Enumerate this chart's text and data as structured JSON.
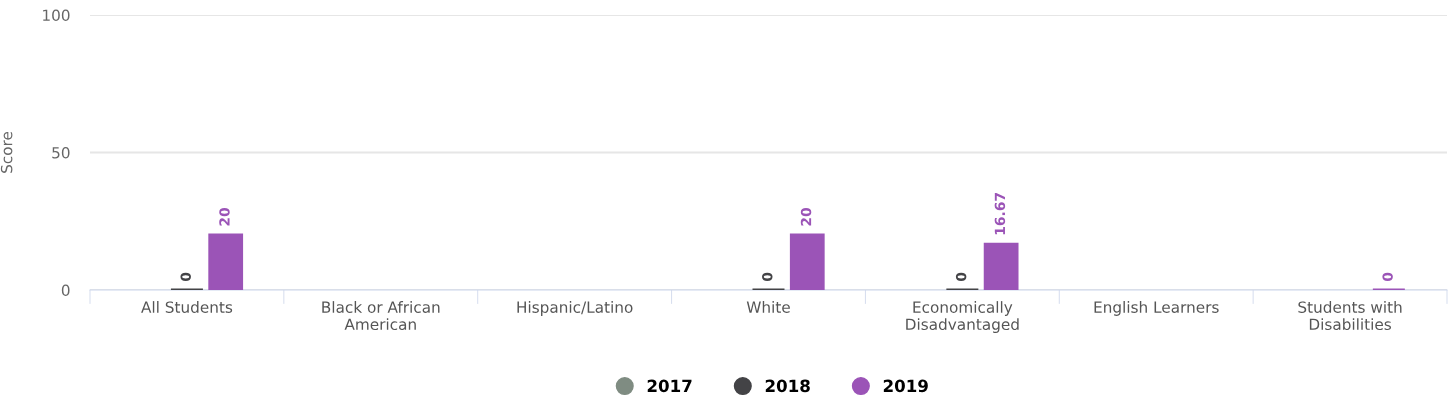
{
  "chart_data": {
    "type": "bar",
    "ylabel": "Score",
    "categories": [
      "All Students",
      "Black or African American",
      "Hispanic/Latino",
      "White",
      "Economically Disadvantaged",
      "English Learners",
      "Students with Disabilities"
    ],
    "series": [
      {
        "name": "2017",
        "color": "#7f8c82",
        "values": [
          null,
          null,
          null,
          null,
          null,
          null,
          null
        ]
      },
      {
        "name": "2018",
        "color": "#434346",
        "values": [
          0,
          null,
          null,
          0,
          0,
          null,
          null
        ]
      },
      {
        "name": "2019",
        "color": "#9b54b7",
        "values": [
          20,
          null,
          null,
          20,
          16.67,
          null,
          0
        ]
      }
    ],
    "ylim": [
      0,
      100
    ],
    "yticks": [
      0,
      50,
      100
    ],
    "grid": "y",
    "legend": "bottom",
    "data_labels": true
  }
}
